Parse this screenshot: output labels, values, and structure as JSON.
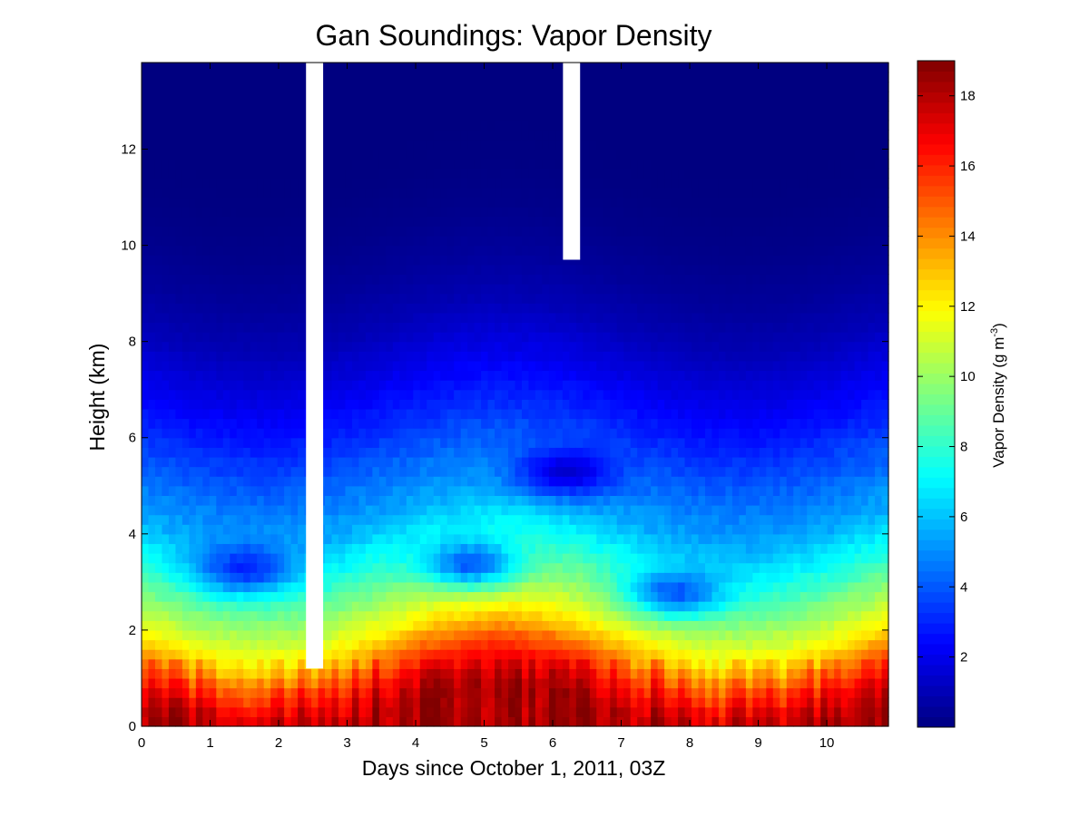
{
  "chart_data": {
    "type": "heatmap",
    "title": "Gan Soundings:  Vapor Density",
    "xlabel": "Days since October 1, 2011, 03Z",
    "ylabel": "Height (km)",
    "xlim": [
      0,
      10.9
    ],
    "ylim": [
      0,
      13.8
    ],
    "x_ticks": [
      0,
      1,
      2,
      3,
      4,
      5,
      6,
      7,
      8,
      9,
      10
    ],
    "y_ticks": [
      0,
      2,
      4,
      6,
      8,
      10,
      12
    ],
    "colormap": "jet",
    "colorbar": {
      "label_main": "Vapor Density (g m",
      "label_exp": "-3",
      "label_close": ")",
      "range": [
        0,
        19
      ],
      "ticks": [
        2,
        4,
        6,
        8,
        10,
        12,
        14,
        16,
        18
      ]
    },
    "missing_data": [
      {
        "x_start": 2.4,
        "x_end": 2.65,
        "y_start": 1.2,
        "y_end": 13.8
      },
      {
        "x_start": 6.15,
        "x_end": 6.4,
        "y_start": 9.7,
        "y_end": 13.8
      }
    ],
    "profile_heights_km": [
      0,
      0.5,
      1,
      1.5,
      2,
      3,
      4,
      5,
      6,
      7,
      8,
      9,
      10,
      11,
      12,
      13.8
    ],
    "profile_values_g_m3": [
      18.2,
      17.0,
      15.0,
      12.5,
      10.8,
      8.0,
      5.6,
      4.3,
      3.0,
      1.9,
      1.0,
      0.5,
      0.2,
      0.05,
      0.0,
      0.0
    ],
    "dry_layer_days": [
      {
        "x_center": 1.5,
        "y_center": 3.3,
        "value": 3.0
      },
      {
        "x_center": 4.8,
        "y_center": 3.4,
        "value": 4.0
      },
      {
        "x_center": 7.8,
        "y_center": 2.8,
        "value": 4.0
      },
      {
        "x_center": 6.2,
        "y_center": 5.3,
        "value": 1.5
      }
    ]
  },
  "colors": {
    "background": "#ffffff",
    "axes": "#000000"
  }
}
